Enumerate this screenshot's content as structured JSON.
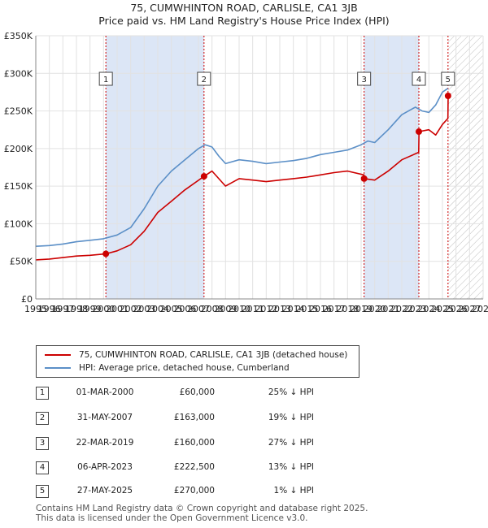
{
  "chart_data": {
    "type": "line",
    "title": "75, CUMWHINTON ROAD, CARLISLE, CA1 3JB",
    "subtitle": "Price paid vs. HM Land Registry's House Price Index (HPI)",
    "xlim": [
      1995,
      2028
    ],
    "ylim": [
      0,
      350000
    ],
    "x_ticks": [
      "1995",
      "1996",
      "1997",
      "1998",
      "1999",
      "2000",
      "2001",
      "2002",
      "2003",
      "2004",
      "2005",
      "2006",
      "2007",
      "2008",
      "2009",
      "2010",
      "2011",
      "2012",
      "2013",
      "2014",
      "2015",
      "2016",
      "2017",
      "2018",
      "2019",
      "2020",
      "2021",
      "2022",
      "2023",
      "2024",
      "2025",
      "2026",
      "2027",
      "2028"
    ],
    "y_ticks": [
      {
        "value": 0,
        "label": "£0"
      },
      {
        "value": 50000,
        "label": "£50K"
      },
      {
        "value": 100000,
        "label": "£100K"
      },
      {
        "value": 150000,
        "label": "£150K"
      },
      {
        "value": 200000,
        "label": "£200K"
      },
      {
        "value": 250000,
        "label": "£250K"
      },
      {
        "value": 300000,
        "label": "£300K"
      },
      {
        "value": 350000,
        "label": "£350K"
      }
    ],
    "shaded_ranges": [
      [
        2000.17,
        2007.41
      ],
      [
        2019.22,
        2023.26
      ]
    ],
    "hatched_range": [
      2025.41,
      2028
    ],
    "colors": {
      "property": "#cc0000",
      "hpi": "#5b8fc7",
      "shade": "#dce6f6",
      "marker_line": "#cc0000"
    },
    "series": [
      {
        "name": "HPI: Average price, detached house, Cumberland",
        "x": [
          1995,
          1996,
          1997,
          1998,
          1999,
          2000,
          2001,
          2002,
          2003,
          2004,
          2005,
          2006,
          2007,
          2007.5,
          2008,
          2008.5,
          2009,
          2010,
          2011,
          2012,
          2013,
          2014,
          2015,
          2016,
          2017,
          2018,
          2019,
          2019.5,
          2020,
          2021,
          2022,
          2023,
          2023.5,
          2024,
          2024.5,
          2025,
          2025.4
        ],
        "y": [
          70000,
          71000,
          73000,
          76000,
          78000,
          80000,
          85000,
          95000,
          120000,
          150000,
          170000,
          185000,
          200000,
          205000,
          202000,
          190000,
          180000,
          185000,
          183000,
          180000,
          182000,
          184000,
          187000,
          192000,
          195000,
          198000,
          205000,
          210000,
          208000,
          225000,
          245000,
          255000,
          250000,
          248000,
          258000,
          275000,
          280000
        ]
      },
      {
        "name": "75, CUMWHINTON ROAD, CARLISLE, CA1 3JB (detached house)",
        "x": [
          1995,
          1996,
          1997,
          1998,
          1999,
          2000.17,
          2001,
          2002,
          2003,
          2004,
          2005,
          2006,
          2007.41,
          2008,
          2008.5,
          2009,
          2010,
          2011,
          2012,
          2013,
          2014,
          2015,
          2016,
          2017,
          2018,
          2019.21,
          2019.23,
          2020,
          2021,
          2022,
          2023.25,
          2023.27,
          2024,
          2024.5,
          2025,
          2025.4,
          2025.42,
          2025.6
        ],
        "y": [
          52000,
          53000,
          55000,
          57000,
          58000,
          60000,
          64000,
          72000,
          90000,
          115000,
          130000,
          145000,
          163000,
          170000,
          160000,
          150000,
          160000,
          158000,
          156000,
          158000,
          160000,
          162000,
          165000,
          168000,
          170000,
          165000,
          160000,
          158000,
          170000,
          185000,
          195000,
          222500,
          225000,
          218000,
          232000,
          240000,
          270000,
          273000
        ]
      }
    ],
    "sales": [
      {
        "num": "1",
        "x": 2000.17,
        "y": 60000,
        "date": "01-MAR-2000",
        "price": "£60,000",
        "hpi": "25% ↓ HPI"
      },
      {
        "num": "2",
        "x": 2007.41,
        "y": 163000,
        "date": "31-MAY-2007",
        "price": "£163,000",
        "hpi": "19% ↓ HPI"
      },
      {
        "num": "3",
        "x": 2019.22,
        "y": 160000,
        "date": "22-MAR-2019",
        "price": "£160,000",
        "hpi": "27% ↓ HPI"
      },
      {
        "num": "4",
        "x": 2023.26,
        "y": 222500,
        "date": "06-APR-2023",
        "price": "£222,500",
        "hpi": "13% ↓ HPI"
      },
      {
        "num": "5",
        "x": 2025.41,
        "y": 270000,
        "date": "27-MAY-2025",
        "price": "£270,000",
        "hpi": "1% ↓ HPI"
      }
    ]
  },
  "legend": {
    "property_label": "75, CUMWHINTON ROAD, CARLISLE, CA1 3JB (detached house)",
    "hpi_label": "HPI: Average price, detached house, Cumberland"
  },
  "footer": {
    "line1": "Contains HM Land Registry data © Crown copyright and database right 2025.",
    "line2": "This data is licensed under the Open Government Licence v3.0."
  }
}
